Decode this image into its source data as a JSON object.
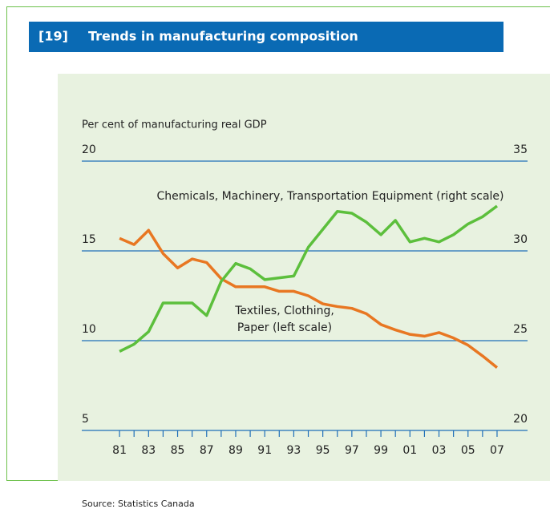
{
  "chart_data": {
    "type": "line",
    "number": "[19]",
    "title": "Trends in manufacturing composition",
    "y_label": "Per cent of manufacturing real GDP",
    "source": "Source: Statistics Canada",
    "x": [
      1981,
      1982,
      1983,
      1984,
      1985,
      1986,
      1987,
      1988,
      1989,
      1990,
      1991,
      1992,
      1993,
      1994,
      1995,
      1996,
      1997,
      1998,
      1999,
      2000,
      2001,
      2002,
      2003,
      2004,
      2005,
      2006,
      2007
    ],
    "xlim": [
      1978.4,
      2009.1
    ],
    "xticks": [
      {
        "value": 1981,
        "label": "81"
      },
      {
        "value": 1983,
        "label": "83"
      },
      {
        "value": 1985,
        "label": "85"
      },
      {
        "value": 1987,
        "label": "87"
      },
      {
        "value": 1989,
        "label": "89"
      },
      {
        "value": 1991,
        "label": "91"
      },
      {
        "value": 1993,
        "label": "93"
      },
      {
        "value": 1995,
        "label": "95"
      },
      {
        "value": 1997,
        "label": "97"
      },
      {
        "value": 1999,
        "label": "99"
      },
      {
        "value": 2001,
        "label": "01"
      },
      {
        "value": 2003,
        "label": "03"
      },
      {
        "value": 2005,
        "label": "05"
      },
      {
        "value": 2007,
        "label": "07"
      }
    ],
    "ylim": [
      5,
      20
    ],
    "yticks": [
      5,
      10,
      15,
      20
    ],
    "y2lim": [
      20,
      35
    ],
    "y2ticks": [
      20,
      25,
      30,
      35
    ],
    "grid": true,
    "series": [
      {
        "name": "Textiles, Clothing, Paper (left scale)",
        "label_lines": [
          "Textiles, Clothing,",
          "Paper (left scale)"
        ],
        "color": "#e87722",
        "axis": "y",
        "values": [
          15.7,
          15.35,
          16.15,
          14.85,
          14.05,
          14.55,
          14.35,
          13.45,
          13.0,
          13.0,
          13.0,
          12.75,
          12.75,
          12.5,
          12.05,
          11.9,
          11.8,
          11.5,
          10.9,
          10.6,
          10.35,
          10.25,
          10.45,
          10.15,
          9.75,
          9.15,
          8.5
        ]
      },
      {
        "name": "Chemicals, Machinery, Transportation Equipment (right scale)",
        "color": "#5cbf3c",
        "axis": "y2",
        "values": [
          24.4,
          24.8,
          25.5,
          27.1,
          27.1,
          27.1,
          26.4,
          28.3,
          29.3,
          29.0,
          28.4,
          28.5,
          28.6,
          30.2,
          31.2,
          32.2,
          32.1,
          31.6,
          30.9,
          31.7,
          30.5,
          30.7,
          30.5,
          30.9,
          31.5,
          31.9,
          32.5
        ]
      }
    ]
  }
}
